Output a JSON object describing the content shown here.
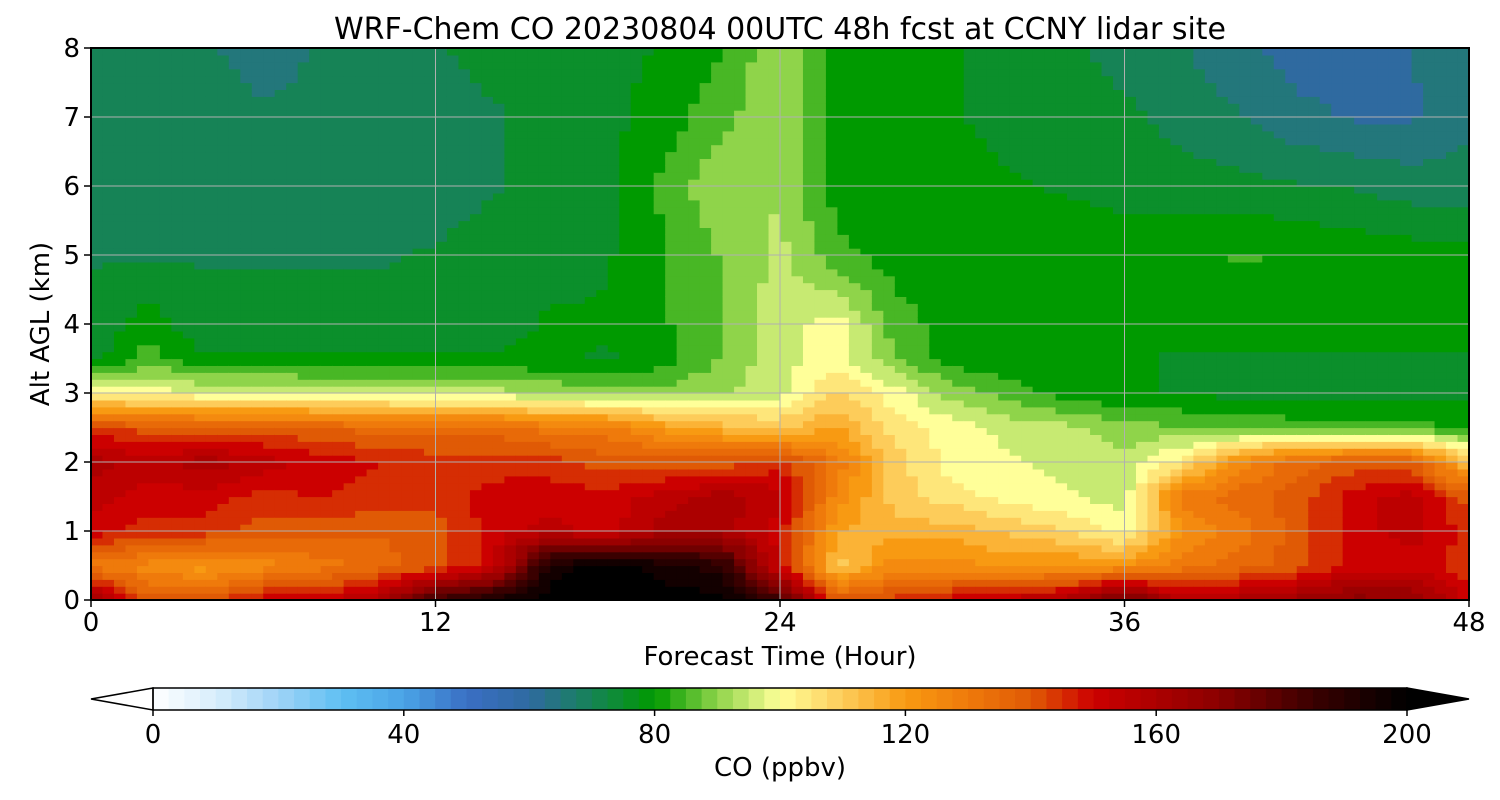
{
  "chart_data": {
    "type": "heatmap",
    "title": "WRF-Chem CO  20230804 00UTC 48h fcst at CCNY lidar site",
    "xlabel": "Forecast Time (Hour)",
    "ylabel": "Alt AGL (km)",
    "xlim": [
      0,
      48
    ],
    "ylim": [
      0,
      8
    ],
    "xticks": [
      "0",
      "12",
      "24",
      "36",
      "48"
    ],
    "yticks": [
      "0",
      "1",
      "2",
      "3",
      "4",
      "5",
      "6",
      "7",
      "8"
    ],
    "grid": true,
    "colorbar": {
      "label": "CO  (ppbv)",
      "range": [
        0,
        200
      ],
      "ticks": [
        "0",
        "40",
        "80",
        "120",
        "160",
        "200"
      ],
      "extend": "both",
      "color_stops": [
        {
          "value": 0,
          "color": "#ffffff"
        },
        {
          "value": 10,
          "color": "#d8eefc"
        },
        {
          "value": 20,
          "color": "#9fd3f7"
        },
        {
          "value": 30,
          "color": "#5fc0f2"
        },
        {
          "value": 40,
          "color": "#4aa3e6"
        },
        {
          "value": 50,
          "color": "#3a6fc4"
        },
        {
          "value": 60,
          "color": "#2f6aa0"
        },
        {
          "value": 70,
          "color": "#168356"
        },
        {
          "value": 80,
          "color": "#009a00"
        },
        {
          "value": 90,
          "color": "#8fd44a"
        },
        {
          "value": 100,
          "color": "#ffff99"
        },
        {
          "value": 110,
          "color": "#fdcc5a"
        },
        {
          "value": 120,
          "color": "#f89a12"
        },
        {
          "value": 130,
          "color": "#ef7a0b"
        },
        {
          "value": 140,
          "color": "#e05a05"
        },
        {
          "value": 150,
          "color": "#cc0000"
        },
        {
          "value": 170,
          "color": "#8b0000"
        },
        {
          "value": 185,
          "color": "#3a0000"
        },
        {
          "value": 200,
          "color": "#000000"
        }
      ]
    },
    "x_hours": [
      0,
      2,
      4,
      6,
      8,
      10,
      12,
      14,
      16,
      18,
      20,
      22,
      24,
      26,
      28,
      30,
      32,
      34,
      36,
      38,
      40,
      42,
      44,
      46,
      48
    ],
    "y_km": [
      0,
      0.5,
      1,
      1.5,
      2,
      2.5,
      3,
      3.5,
      4,
      5,
      6,
      7,
      8
    ],
    "values": [
      [
        165,
        140,
        140,
        150,
        150,
        160,
        185,
        195,
        200,
        200,
        200,
        200,
        185,
        140,
        145,
        150,
        155,
        160,
        180,
        155,
        160,
        165,
        170,
        168,
        150
      ],
      [
        130,
        125,
        120,
        125,
        130,
        135,
        140,
        150,
        195,
        200,
        195,
        190,
        150,
        110,
        125,
        125,
        120,
        122,
        122,
        130,
        135,
        140,
        150,
        150,
        145
      ],
      [
        150,
        145,
        145,
        140,
        140,
        138,
        140,
        150,
        155,
        150,
        160,
        160,
        150,
        118,
        115,
        115,
        112,
        108,
        100,
        122,
        130,
        140,
        150,
        155,
        145
      ],
      [
        155,
        150,
        150,
        145,
        148,
        145,
        145,
        150,
        150,
        150,
        155,
        160,
        155,
        125,
        110,
        105,
        100,
        98,
        95,
        130,
        135,
        140,
        150,
        155,
        140
      ],
      [
        160,
        155,
        160,
        155,
        150,
        148,
        145,
        145,
        145,
        140,
        140,
        140,
        145,
        130,
        110,
        100,
        98,
        96,
        94,
        105,
        125,
        135,
        140,
        140,
        112
      ],
      [
        145,
        140,
        140,
        140,
        138,
        135,
        135,
        135,
        130,
        130,
        120,
        115,
        112,
        118,
        105,
        100,
        96,
        94,
        90,
        88,
        86,
        85,
        84,
        84,
        82
      ],
      [
        100,
        100,
        98,
        98,
        96,
        96,
        95,
        95,
        92,
        90,
        90,
        92,
        96,
        108,
        100,
        90,
        85,
        80,
        78,
        77,
        76,
        76,
        76,
        76,
        76
      ],
      [
        75,
        85,
        78,
        78,
        78,
        78,
        78,
        78,
        78,
        77,
        80,
        88,
        96,
        100,
        88,
        80,
        78,
        78,
        78,
        77,
        77,
        77,
        77,
        77,
        77
      ],
      [
        74,
        80,
        74,
        74,
        74,
        74,
        75,
        76,
        78,
        78,
        82,
        88,
        95,
        100,
        85,
        80,
        79,
        79,
        79,
        79,
        80,
        81,
        81,
        80,
        79
      ],
      [
        72,
        72,
        72,
        72,
        72,
        72,
        73,
        75,
        76,
        77,
        82,
        88,
        94,
        84,
        80,
        80,
        80,
        80,
        80,
        81,
        83,
        82,
        81,
        80,
        79
      ],
      [
        70,
        70,
        70,
        70,
        69,
        70,
        70,
        72,
        74,
        76,
        84,
        92,
        92,
        80,
        80,
        79,
        78,
        77,
        76,
        75,
        74,
        73,
        72,
        70,
        70
      ],
      [
        70,
        70,
        69,
        68,
        68,
        70,
        70,
        72,
        74,
        76,
        80,
        86,
        92,
        80,
        80,
        78,
        76,
        75,
        74,
        70,
        68,
        64,
        62,
        62,
        66
      ],
      [
        72,
        71,
        68,
        66,
        68,
        70,
        72,
        74,
        75,
        76,
        78,
        82,
        92,
        80,
        80,
        78,
        76,
        74,
        70,
        68,
        64,
        60,
        60,
        62,
        68
      ]
    ]
  }
}
